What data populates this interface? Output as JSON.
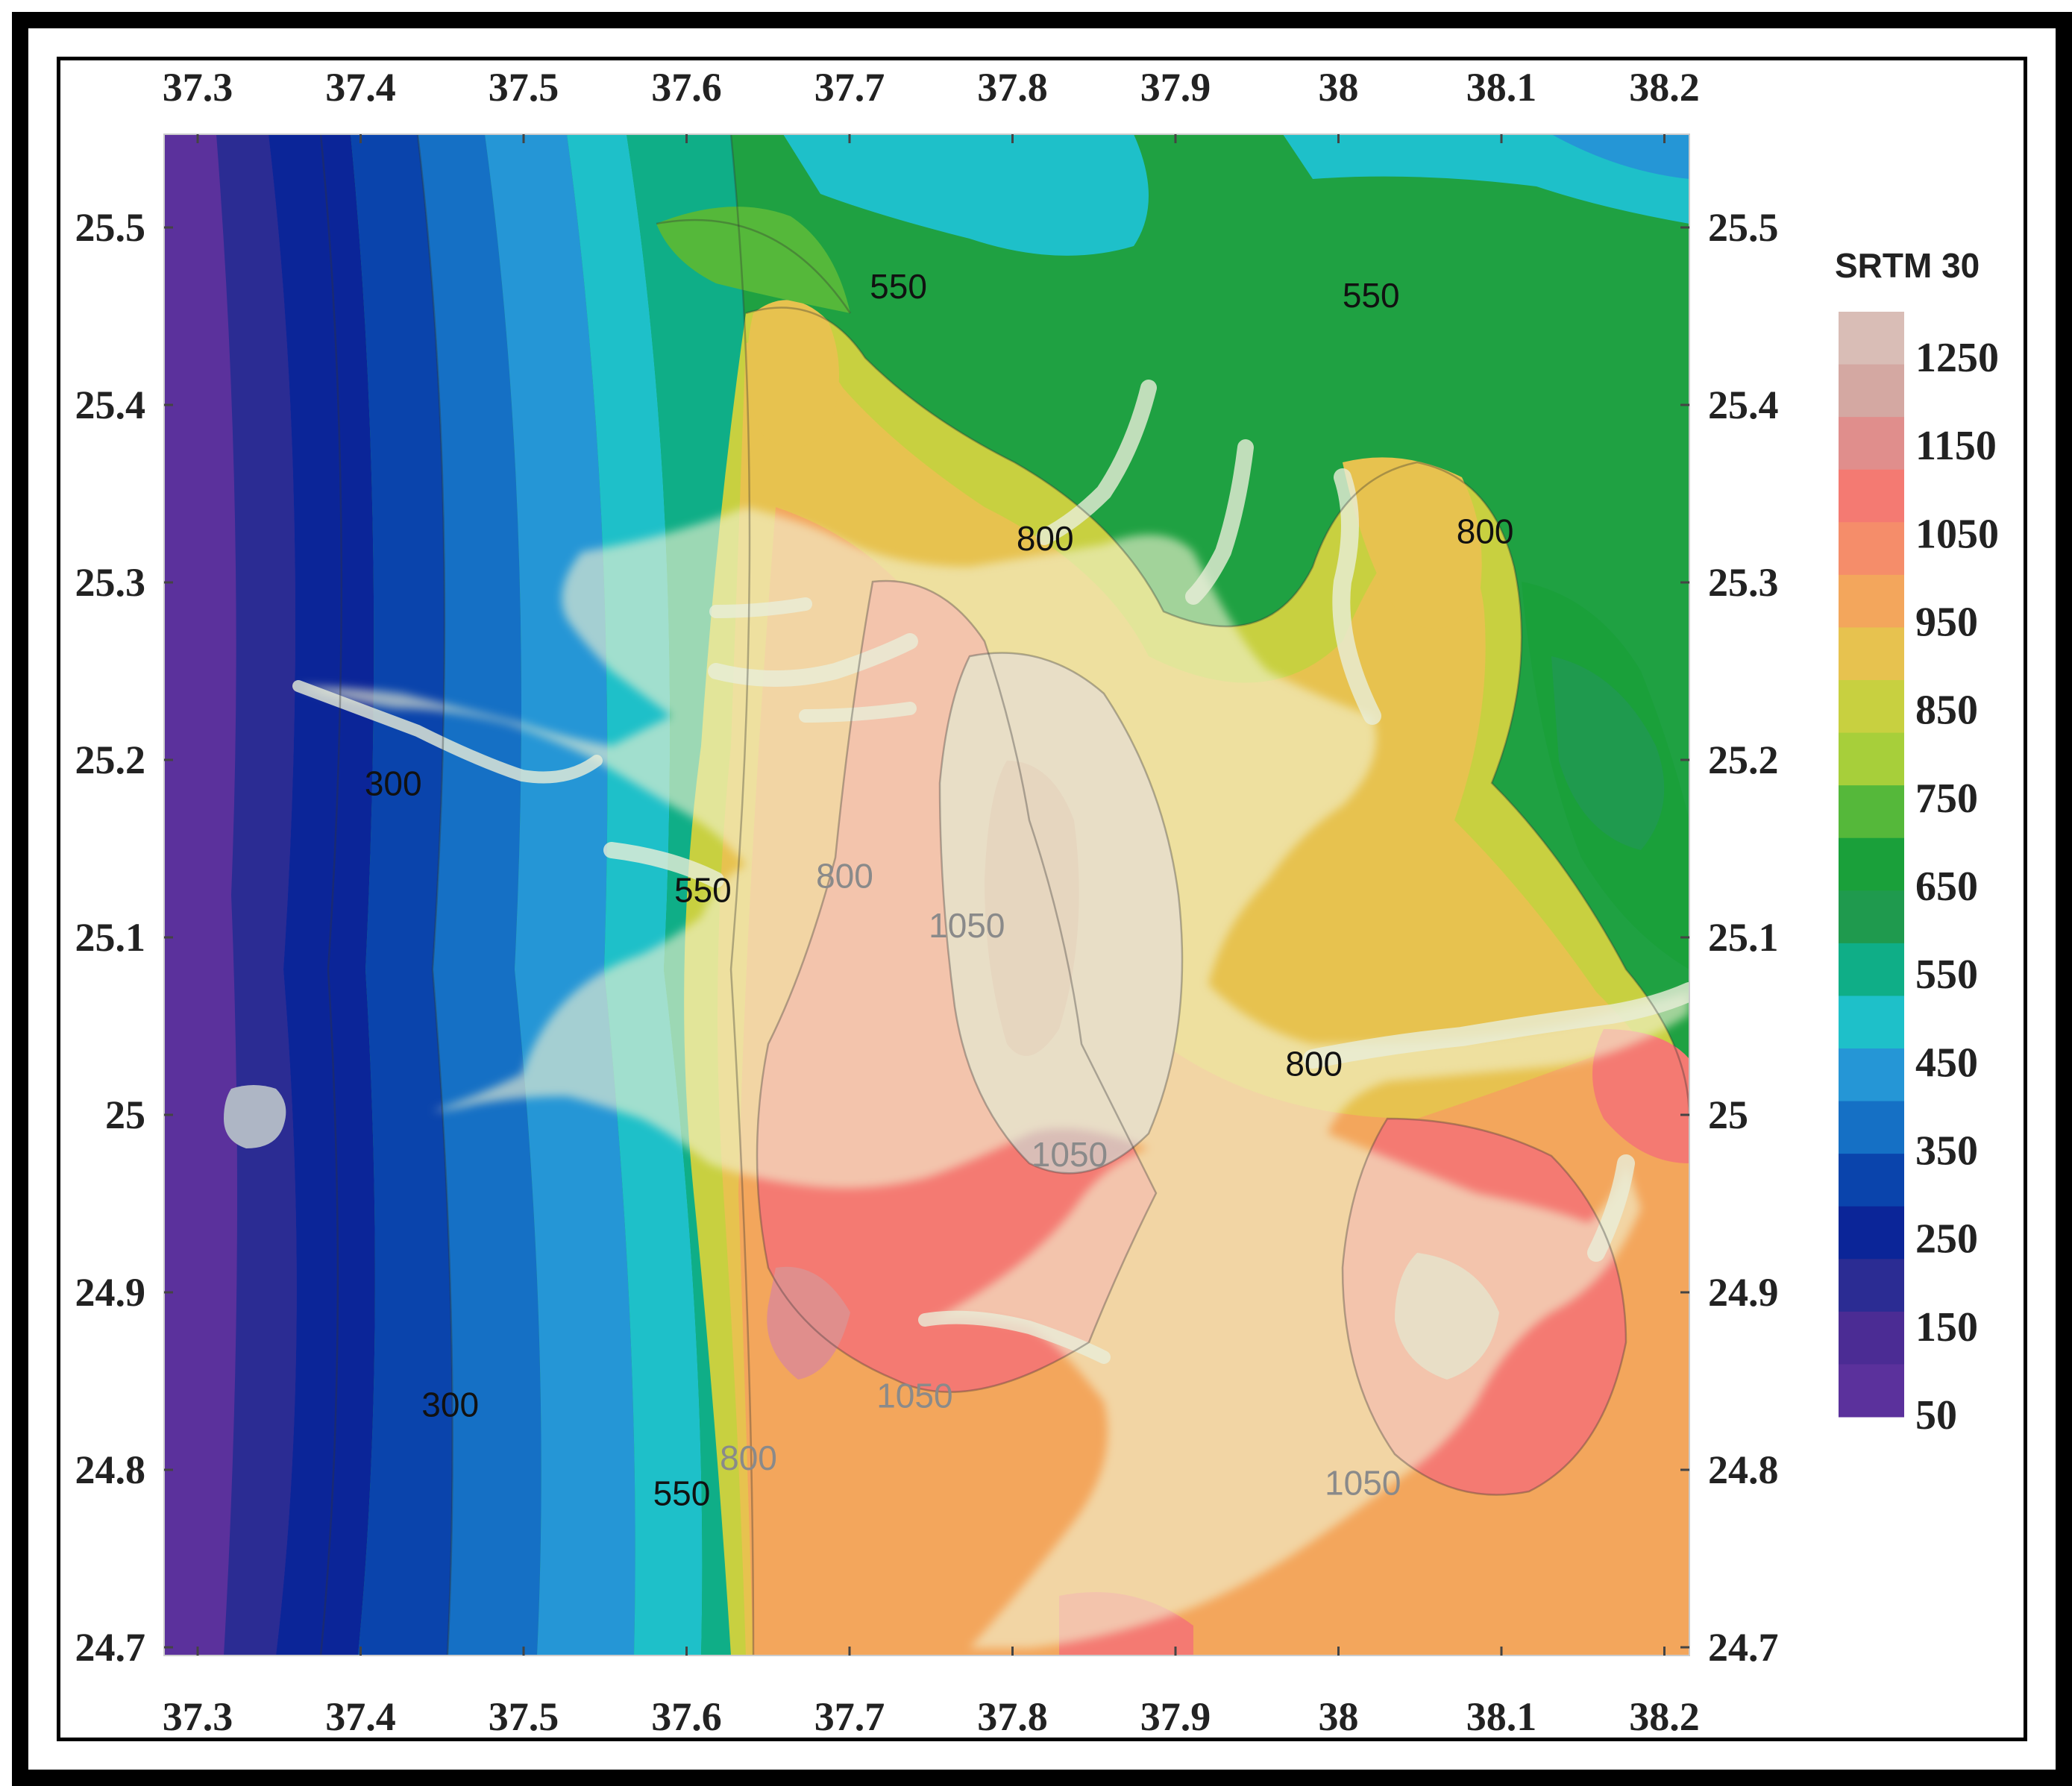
{
  "map": {
    "lon_ticks": [
      "37.3",
      "37.4",
      "37.5",
      "37.6",
      "37.7",
      "37.8",
      "37.9",
      "38",
      "38.1",
      "38.2"
    ],
    "lat_ticks": [
      "25.5",
      "25.4",
      "25.3",
      "25.2",
      "25.1",
      "25",
      "24.9",
      "24.8",
      "24.7"
    ],
    "contour_labels": [
      {
        "text": "550",
        "lon": 37.73,
        "lat": 25.46
      },
      {
        "text": "550",
        "lon": 38.02,
        "lat": 25.455
      },
      {
        "text": "800",
        "lon": 37.82,
        "lat": 25.318
      },
      {
        "text": "800",
        "lon": 38.09,
        "lat": 25.322
      },
      {
        "text": "300",
        "lon": 37.42,
        "lat": 25.18
      },
      {
        "text": "550",
        "lon": 37.61,
        "lat": 25.12
      },
      {
        "text": "800",
        "lon": 37.697,
        "lat": 25.128
      },
      {
        "text": "1050",
        "lon": 37.772,
        "lat": 25.1
      },
      {
        "text": "800",
        "lon": 37.985,
        "lat": 25.022
      },
      {
        "text": "1050",
        "lon": 37.835,
        "lat": 24.971
      },
      {
        "text": "1050",
        "lon": 37.74,
        "lat": 24.835
      },
      {
        "text": "300",
        "lon": 37.455,
        "lat": 24.83
      },
      {
        "text": "550",
        "lon": 37.597,
        "lat": 24.78
      },
      {
        "text": "800",
        "lon": 37.638,
        "lat": 24.8
      },
      {
        "text": "1050",
        "lon": 38.015,
        "lat": 24.786
      }
    ]
  },
  "legend": {
    "title": "SRTM 30",
    "labels": [
      "1250",
      "1150",
      "1050",
      "950",
      "850",
      "750",
      "650",
      "550",
      "450",
      "350",
      "250",
      "150",
      "50"
    ],
    "colors": [
      "#d9bdb6",
      "#d4a8a2",
      "#e08e8c",
      "#f47a72",
      "#f58d6a",
      "#f3a65c",
      "#e7c24f",
      "#c8d040",
      "#a7cf3a",
      "#55b83a",
      "#1aa03a",
      "#1f9a4e",
      "#0fae87",
      "#1ec0c9",
      "#2596d6",
      "#1570c5",
      "#0a44ac",
      "#0b2598",
      "#2b2c93",
      "#4b2c94",
      "#5b319c"
    ]
  }
}
